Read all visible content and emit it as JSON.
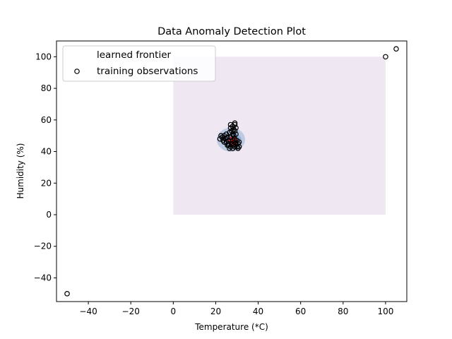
{
  "chart_data": {
    "type": "scatter",
    "title": "Data Anomaly Detection Plot",
    "xlabel": "Temperature (*C)",
    "ylabel": "Humidity (%)",
    "xlim": [
      -55,
      110
    ],
    "ylim": [
      -55,
      110
    ],
    "xticks": [
      -40,
      -20,
      0,
      20,
      40,
      60,
      80,
      100
    ],
    "yticks": [
      -40,
      -20,
      0,
      20,
      40,
      60,
      80,
      100
    ],
    "xtick_labels": [
      "−40",
      "−20",
      "0",
      "20",
      "40",
      "60",
      "80",
      "100"
    ],
    "ytick_labels": [
      "−40",
      "−20",
      "0",
      "20",
      "40",
      "60",
      "80",
      "100"
    ],
    "grid": false,
    "legend": {
      "placement": "upper-left",
      "entries": [
        {
          "label": "learned frontier",
          "marker": "none"
        },
        {
          "label": "training observations",
          "marker": "hollow-circle"
        }
      ]
    },
    "frontier": {
      "x_range": [
        0,
        100
      ],
      "y_range": [
        0,
        100
      ],
      "background_color": "#efe8f2",
      "contour_colors": [
        "#b9c8e0",
        "#8fb0d8",
        "#c23030",
        "#8a1010"
      ],
      "center": [
        27.5,
        47.5
      ]
    },
    "series": [
      {
        "name": "training observations",
        "marker_color": "#000000",
        "marker_fill": "#ffffff",
        "points": [
          [
            -50,
            -50
          ],
          [
            100,
            100
          ],
          [
            105,
            105
          ],
          [
            22,
            48
          ],
          [
            22.5,
            50
          ],
          [
            23,
            49
          ],
          [
            23.5,
            47
          ],
          [
            24,
            50
          ],
          [
            24.5,
            48
          ],
          [
            25,
            46
          ],
          [
            25,
            51
          ],
          [
            25.5,
            49
          ],
          [
            26,
            47
          ],
          [
            26,
            44
          ],
          [
            26.5,
            52
          ],
          [
            26.5,
            42
          ],
          [
            27,
            49
          ],
          [
            27,
            55
          ],
          [
            27,
            57
          ],
          [
            27.5,
            45
          ],
          [
            27.5,
            53
          ],
          [
            28,
            47
          ],
          [
            28,
            42
          ],
          [
            28,
            56
          ],
          [
            28.5,
            50
          ],
          [
            28.5,
            44
          ],
          [
            29,
            57
          ],
          [
            29,
            53
          ],
          [
            29,
            48
          ],
          [
            29,
            58
          ],
          [
            29.5,
            45
          ],
          [
            29.5,
            51
          ],
          [
            29.5,
            55
          ],
          [
            30,
            43
          ],
          [
            30,
            47
          ],
          [
            30.5,
            45
          ],
          [
            31,
            43
          ],
          [
            31,
            46
          ],
          [
            26,
            45
          ],
          [
            27,
            43
          ],
          [
            28,
            51
          ],
          [
            24,
            46
          ],
          [
            25.5,
            44
          ],
          [
            28.5,
            54
          ],
          [
            29,
            43
          ],
          [
            30.5,
            42
          ]
        ]
      }
    ]
  }
}
